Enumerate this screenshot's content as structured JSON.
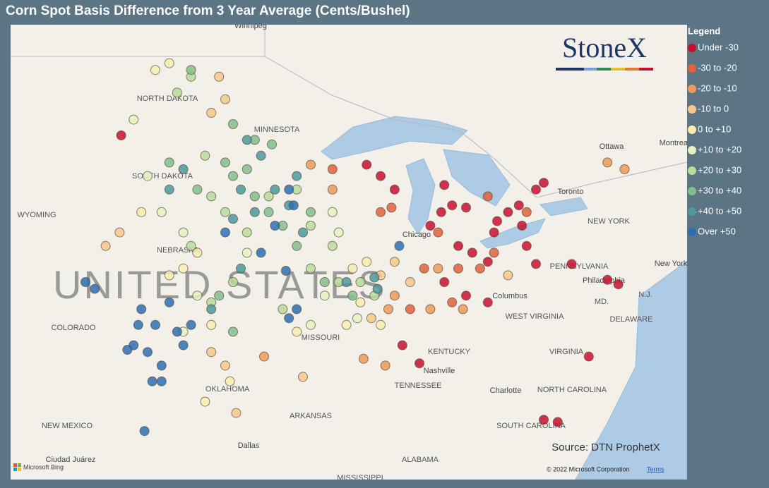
{
  "title": "Corn Spot Basis Difference from 3 Year Average (Cents/Bushel)",
  "legend_title": "Legend",
  "logo": "StoneX",
  "source": "Source: DTN ProphetX",
  "attribution": {
    "bing": "Microsoft Bing",
    "copyright": "© 2022 Microsoft Corporation",
    "terms": "Terms"
  },
  "map": {
    "labels": [
      "Winnipeg",
      "NORTH DAKOTA",
      "SOUTH DAKOTA",
      "MINNESOTA",
      "WYOMING",
      "NEBRASKA",
      "UNITED STATES",
      "COLORADO",
      "MISSOURI",
      "OKLAHOMA",
      "ARKANSAS",
      "NEW MEXICO",
      "Dallas",
      "Ciudad Juárez",
      "Chicago",
      "Columbus",
      "Nashville",
      "TENNESSEE",
      "KENTUCKY",
      "WEST VIRGINIA",
      "VIRGINIA",
      "NORTH CAROLINA",
      "SOUTH CAROLINA",
      "Charlotte",
      "ALABAMA",
      "MISSISSIPPI",
      "PENNSYLVANIA",
      "Philadelphia",
      "NEW YORK",
      "New York",
      "Ottawa",
      "Toronto",
      "Montreal",
      "MD.",
      "N.J.",
      "DELAWARE"
    ],
    "series": [
      {
        "name": "Under -30",
        "color": "#c8102e",
        "points": [
          [
            -86.7,
            42.4
          ],
          [
            -86.0,
            43.0
          ],
          [
            -85.3,
            43.3
          ],
          [
            -84.4,
            43.2
          ],
          [
            -84.9,
            41.5
          ],
          [
            -84.0,
            41.2
          ],
          [
            -83.0,
            40.8
          ],
          [
            -82.6,
            42.1
          ],
          [
            -81.7,
            43.0
          ],
          [
            -81.0,
            43.3
          ],
          [
            -80.8,
            42.4
          ],
          [
            -79.9,
            44.0
          ],
          [
            -79.4,
            44.3
          ],
          [
            -80.5,
            41.5
          ],
          [
            -79.9,
            40.7
          ],
          [
            -82.4,
            42.6
          ],
          [
            -85.8,
            39.9
          ],
          [
            -84.4,
            39.3
          ],
          [
            -83.0,
            39.0
          ],
          [
            -88.5,
            37.1
          ],
          [
            -87.4,
            36.3
          ],
          [
            -77.6,
            40.7
          ],
          [
            -75.3,
            40.0
          ],
          [
            -74.6,
            39.8
          ],
          [
            -76.5,
            36.6
          ],
          [
            -79.4,
            33.8
          ],
          [
            -78.5,
            33.7
          ],
          [
            -85.8,
            44.2
          ],
          [
            -90.8,
            45.1
          ],
          [
            -89.9,
            44.6
          ],
          [
            -89.0,
            44.0
          ],
          [
            -106.6,
            46.4
          ]
        ]
      },
      {
        "name": "-30 to -20",
        "color": "#e0613c",
        "points": [
          [
            -83.5,
            40.5
          ],
          [
            -82.6,
            41.2
          ],
          [
            -84.9,
            40.5
          ],
          [
            -86.2,
            42.1
          ],
          [
            -89.9,
            43.0
          ],
          [
            -89.2,
            43.2
          ],
          [
            -93.0,
            44.9
          ],
          [
            -83.0,
            43.7
          ],
          [
            -80.5,
            43.0
          ],
          [
            -87.1,
            40.5
          ],
          [
            -88.0,
            38.7
          ],
          [
            -85.3,
            39.0
          ]
        ]
      },
      {
        "name": "-20 to -10",
        "color": "#ec9a57",
        "points": [
          [
            -89.0,
            39.3
          ],
          [
            -89.4,
            38.7
          ],
          [
            -86.7,
            38.7
          ],
          [
            -86.2,
            40.5
          ],
          [
            -93.0,
            44.0
          ],
          [
            -94.4,
            45.1
          ],
          [
            -97.4,
            36.6
          ],
          [
            -91.0,
            36.5
          ],
          [
            -75.3,
            45.2
          ],
          [
            -74.2,
            44.9
          ],
          [
            -89.6,
            36.2
          ],
          [
            -84.6,
            38.7
          ]
        ]
      },
      {
        "name": "-10 to 0",
        "color": "#f6c98a",
        "points": [
          [
            -88.0,
            39.9
          ],
          [
            -89.0,
            40.8
          ],
          [
            -100.8,
            36.8
          ],
          [
            -99.9,
            36.2
          ],
          [
            -100.8,
            47.4
          ],
          [
            -99.9,
            48.0
          ],
          [
            -100.3,
            49.0
          ],
          [
            -107.6,
            41.5
          ],
          [
            -106.7,
            42.1
          ],
          [
            -89.9,
            40.2
          ],
          [
            -90.5,
            38.3
          ],
          [
            -81.7,
            40.2
          ],
          [
            -94.9,
            35.7
          ],
          [
            -99.2,
            34.1
          ]
        ]
      },
      {
        "name": "0 to +10",
        "color": "#f7eeb0",
        "points": [
          [
            -91.7,
            40.5
          ],
          [
            -90.8,
            40.8
          ],
          [
            -91.2,
            39.0
          ],
          [
            -92.1,
            38.0
          ],
          [
            -103.5,
            40.2
          ],
          [
            -102.6,
            40.5
          ],
          [
            -101.7,
            41.2
          ],
          [
            -104.4,
            49.3
          ],
          [
            -103.5,
            49.6
          ],
          [
            -100.8,
            38.0
          ],
          [
            -95.3,
            37.7
          ],
          [
            -89.9,
            38.0
          ],
          [
            -99.6,
            35.5
          ],
          [
            -105.3,
            43.0
          ],
          [
            -101.2,
            34.6
          ]
        ]
      },
      {
        "name": "+10 to +20",
        "color": "#e6f2c0",
        "points": [
          [
            -93.0,
            43.0
          ],
          [
            -92.6,
            42.1
          ],
          [
            -93.5,
            39.3
          ],
          [
            -102.6,
            42.1
          ],
          [
            -104.0,
            43.0
          ],
          [
            -104.9,
            44.6
          ],
          [
            -105.8,
            47.1
          ],
          [
            -101.7,
            39.3
          ],
          [
            -102.6,
            37.7
          ],
          [
            -98.5,
            41.2
          ],
          [
            -94.4,
            38.0
          ],
          [
            -91.4,
            38.3
          ]
        ]
      },
      {
        "name": "+20 to +30",
        "color": "#b8dc9c",
        "points": [
          [
            -100.8,
            43.7
          ],
          [
            -99.9,
            43.0
          ],
          [
            -98.5,
            42.1
          ],
          [
            -97.1,
            43.7
          ],
          [
            -95.3,
            44.0
          ],
          [
            -94.4,
            42.4
          ],
          [
            -93.0,
            41.5
          ],
          [
            -91.2,
            39.9
          ],
          [
            -90.3,
            39.3
          ],
          [
            -103.0,
            48.3
          ],
          [
            -102.1,
            49.0
          ],
          [
            -101.2,
            45.5
          ],
          [
            -99.4,
            39.9
          ],
          [
            -96.2,
            38.7
          ],
          [
            -102.1,
            41.5
          ],
          [
            -100.8,
            39.0
          ],
          [
            -94.4,
            40.5
          ],
          [
            -92.6,
            39.9
          ]
        ]
      },
      {
        "name": "+30 to +40",
        "color": "#80bf8b",
        "points": [
          [
            -99.4,
            44.6
          ],
          [
            -98.5,
            44.9
          ],
          [
            -98.0,
            43.7
          ],
          [
            -97.1,
            43.0
          ],
          [
            -96.2,
            42.4
          ],
          [
            -95.3,
            41.5
          ],
          [
            -94.4,
            43.0
          ],
          [
            -93.5,
            39.9
          ],
          [
            -91.7,
            39.3
          ],
          [
            -100.3,
            39.3
          ],
          [
            -99.4,
            37.7
          ],
          [
            -102.1,
            49.3
          ],
          [
            -103.5,
            45.2
          ],
          [
            -101.7,
            44.0
          ],
          [
            -99.9,
            45.2
          ],
          [
            -98.0,
            46.2
          ],
          [
            -99.4,
            46.9
          ],
          [
            -96.9,
            46.0
          ]
        ]
      },
      {
        "name": "+40 to +50",
        "color": "#4b9a9d",
        "points": [
          [
            -98.5,
            46.2
          ],
          [
            -97.6,
            45.5
          ],
          [
            -98.9,
            44.0
          ],
          [
            -98.0,
            43.0
          ],
          [
            -96.7,
            44.0
          ],
          [
            -95.8,
            43.3
          ],
          [
            -95.3,
            44.6
          ],
          [
            -94.9,
            42.1
          ],
          [
            -99.4,
            42.7
          ],
          [
            -98.9,
            40.5
          ],
          [
            -92.1,
            39.9
          ],
          [
            -90.3,
            40.1
          ],
          [
            -100.8,
            38.7
          ],
          [
            -90.1,
            39.6
          ],
          [
            -102.6,
            44.9
          ],
          [
            -103.5,
            44.0
          ]
        ]
      },
      {
        "name": "Over +50",
        "color": "#2c6fb5",
        "points": [
          [
            -105.3,
            38.7
          ],
          [
            -104.4,
            38.0
          ],
          [
            -103.5,
            39.0
          ],
          [
            -105.8,
            37.1
          ],
          [
            -104.9,
            36.8
          ],
          [
            -104.0,
            36.2
          ],
          [
            -103.0,
            37.7
          ],
          [
            -102.6,
            37.1
          ],
          [
            -102.1,
            38.0
          ],
          [
            -104.0,
            35.5
          ],
          [
            -104.6,
            35.5
          ],
          [
            -106.2,
            36.9
          ],
          [
            -105.5,
            38.0
          ],
          [
            -95.8,
            44.0
          ],
          [
            -96.7,
            42.4
          ],
          [
            -95.5,
            43.3
          ],
          [
            -97.6,
            41.2
          ],
          [
            -99.9,
            42.1
          ],
          [
            -95.3,
            38.7
          ],
          [
            -96.0,
            40.4
          ],
          [
            -105.1,
            33.3
          ],
          [
            -108.9,
            39.9
          ],
          [
            -108.3,
            39.6
          ],
          [
            -88.7,
            41.5
          ],
          [
            -95.8,
            38.3
          ]
        ]
      }
    ]
  }
}
